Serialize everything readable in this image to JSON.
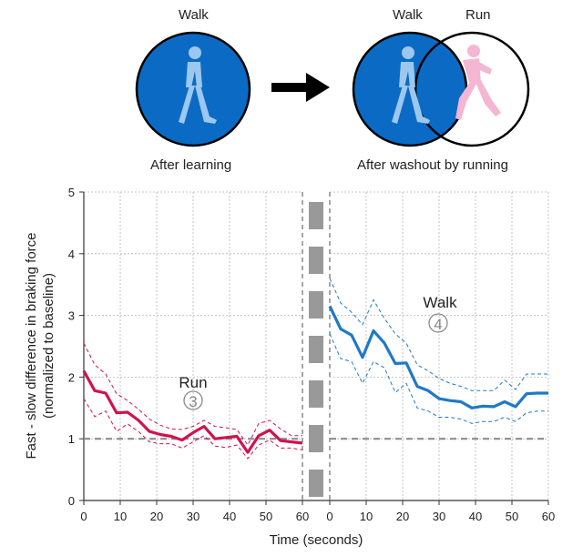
{
  "diagram": {
    "left": {
      "title": "Walk",
      "caption": "After learning"
    },
    "right": {
      "title_walk": "Walk",
      "title_run": "Run",
      "caption": "After washout by running"
    },
    "colors": {
      "walk_fill": "#0b6bc4",
      "walk_figure": "#9cc7ee",
      "run_figure": "#f4b6d2",
      "arrow": "#000000"
    },
    "icons": {
      "walker": "walking-person-icon",
      "runner": "running-person-icon",
      "arrow": "right-arrow-icon"
    }
  },
  "chart_data": {
    "type": "line",
    "xlabel": "Time (seconds)",
    "ylabel_line1": "Fast - slow difference in braking force",
    "ylabel_line2": "(normalized to baseline)",
    "ylim": [
      0,
      5
    ],
    "yticks": [
      "0",
      "1",
      "2",
      "3",
      "4",
      "5"
    ],
    "xlim_left": [
      0,
      60
    ],
    "xlim_right": [
      0,
      60
    ],
    "xticks_left": [
      "0",
      "10",
      "20",
      "30",
      "40",
      "50",
      "60"
    ],
    "xticks_right": [
      "0",
      "10",
      "20",
      "30",
      "40",
      "50",
      "60"
    ],
    "grid": true,
    "baseline": 1,
    "series": [
      {
        "name": "Run",
        "marker": "3",
        "panel": "left",
        "color": "#d0124f",
        "x": [
          0,
          3,
          6,
          9,
          12,
          15,
          18,
          21,
          24,
          27,
          30,
          33,
          36,
          39,
          42,
          45,
          48,
          51,
          54,
          57,
          60
        ],
        "values": [
          2.1,
          1.78,
          1.74,
          1.42,
          1.43,
          1.3,
          1.12,
          1.07,
          1.04,
          0.98,
          1.1,
          1.2,
          1.0,
          1.02,
          1.04,
          0.78,
          1.05,
          1.14,
          0.97,
          0.95,
          0.93
        ],
        "upper": [
          2.55,
          2.2,
          2.05,
          1.73,
          1.62,
          1.48,
          1.32,
          1.22,
          1.16,
          1.15,
          1.2,
          1.3,
          1.2,
          1.18,
          1.15,
          0.9,
          1.25,
          1.3,
          1.16,
          1.05,
          1.05
        ],
        "lower": [
          1.65,
          1.36,
          1.45,
          1.12,
          1.24,
          1.12,
          0.95,
          0.92,
          0.92,
          0.85,
          0.95,
          1.05,
          0.88,
          0.86,
          0.9,
          0.68,
          0.9,
          0.98,
          0.85,
          0.85,
          0.82
        ]
      },
      {
        "name": "Walk",
        "marker": "4",
        "panel": "right",
        "color": "#1f78c8",
        "x": [
          0,
          3,
          6,
          9,
          12,
          15,
          18,
          21,
          24,
          27,
          30,
          33,
          36,
          39,
          42,
          45,
          48,
          51,
          54,
          57,
          60
        ],
        "values": [
          3.15,
          2.78,
          2.68,
          2.32,
          2.75,
          2.55,
          2.22,
          2.23,
          1.85,
          1.78,
          1.65,
          1.62,
          1.6,
          1.5,
          1.53,
          1.52,
          1.6,
          1.52,
          1.73,
          1.74,
          1.74
        ],
        "upper": [
          3.6,
          3.2,
          3.05,
          2.85,
          3.25,
          2.95,
          2.7,
          2.55,
          2.2,
          2.1,
          1.98,
          1.9,
          1.85,
          1.78,
          1.78,
          1.78,
          1.95,
          1.8,
          2.05,
          2.05,
          2.05
        ],
        "lower": [
          2.7,
          2.3,
          2.25,
          1.9,
          2.25,
          2.15,
          1.75,
          1.9,
          1.5,
          1.45,
          1.35,
          1.35,
          1.32,
          1.25,
          1.28,
          1.28,
          1.35,
          1.28,
          1.42,
          1.45,
          1.45
        ]
      }
    ]
  }
}
